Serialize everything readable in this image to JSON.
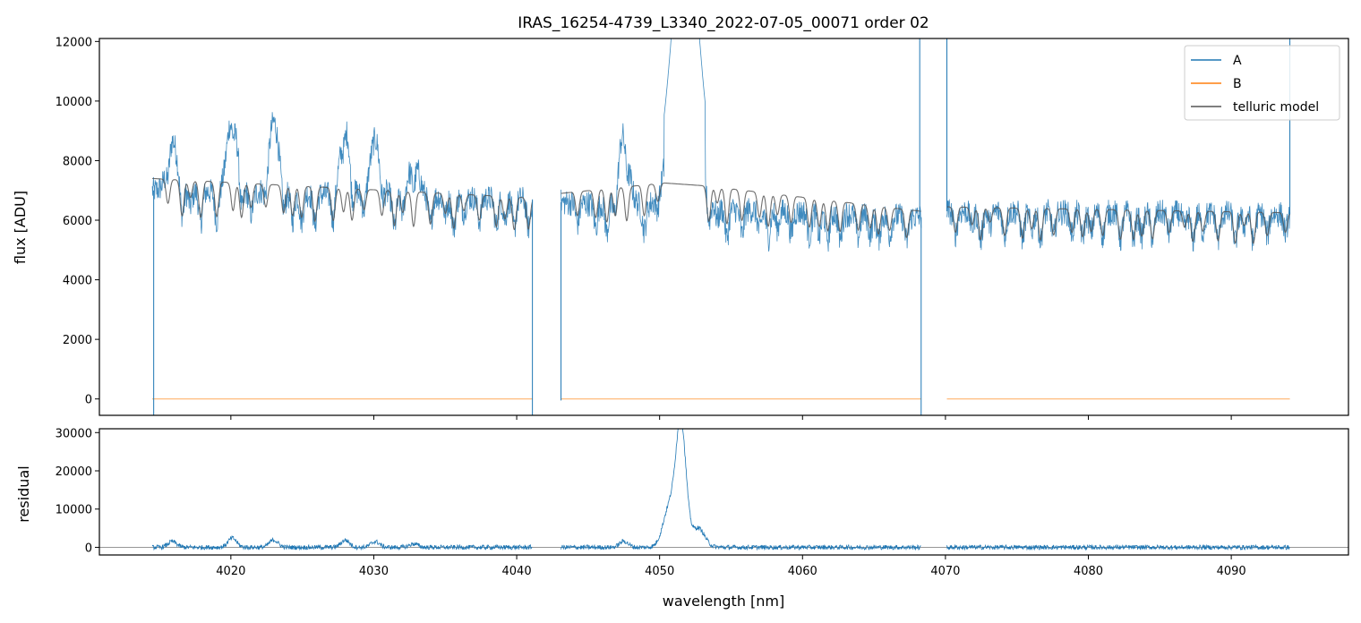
{
  "chart_data": [
    {
      "type": "line",
      "title": "IRAS_16254-4739_L3340_2022-07-05_00071  order 02",
      "ylabel": "flux [ADU]",
      "xlabel": "",
      "xlim": [
        4010.8,
        4098.2
      ],
      "ylim": [
        -550,
        12100
      ],
      "yticks": [
        0,
        2000,
        4000,
        6000,
        8000,
        10000,
        12000
      ],
      "ytick_labels": [
        "0",
        "2000",
        "4000",
        "6000",
        "8000",
        "10000",
        "12000"
      ],
      "xticks": [
        4020,
        4030,
        4040,
        4050,
        4060,
        4070,
        4080,
        4090
      ],
      "grid": false,
      "legend": {
        "position": "top-right",
        "entries": [
          "A",
          "B",
          "telluric model"
        ]
      },
      "segments": [
        {
          "x": [
            4014.5,
            4041.1
          ]
        },
        {
          "x": [
            4043.1,
            4068.3
          ]
        },
        {
          "x": [
            4070.1,
            4094.1
          ]
        }
      ],
      "series": [
        {
          "name": "A",
          "color": "#1f77b4",
          "continuum": [
            [
              4014.5,
              7000
            ],
            [
              4041.1,
              6700
            ],
            [
              4043.1,
              6600
            ],
            [
              4068.3,
              6100
            ],
            [
              4070.1,
              6300
            ],
            [
              4094.1,
              6200
            ]
          ],
          "peaks": [
            [
              4015.9,
              8700
            ],
            [
              4020.1,
              9700
            ],
            [
              4023.0,
              9300
            ],
            [
              4028.0,
              9200
            ],
            [
              4030.1,
              8700
            ],
            [
              4032.8,
              8100
            ],
            [
              4047.5,
              9000
            ],
            [
              4051.7,
              12500
            ],
            [
              4068.2,
              12200
            ],
            [
              4070.1,
              12200
            ],
            [
              4094.1,
              12200
            ]
          ],
          "drops": [
            [
              4014.6,
              -550
            ],
            [
              4041.1,
              -550
            ],
            [
              4043.1,
              -50
            ],
            [
              4068.3,
              -550
            ]
          ]
        },
        {
          "name": "B",
          "color": "#ff7f0e",
          "value": 0
        },
        {
          "name": "telluric model",
          "color": "#555555",
          "continuum": [
            [
              4014.5,
              7400
            ],
            [
              4041.1,
              6750
            ],
            [
              4043.1,
              6900
            ],
            [
              4050.3,
              7250
            ],
            [
              4053.3,
              7150
            ],
            [
              4068.3,
              6300
            ],
            [
              4070.1,
              6450
            ],
            [
              4094.1,
              6250
            ]
          ]
        }
      ]
    },
    {
      "type": "line",
      "title": "",
      "xlabel": "wavelength [nm]",
      "ylabel": "residual",
      "xlim": [
        4010.8,
        4098.2
      ],
      "ylim": [
        -2000,
        31000
      ],
      "yticks": [
        0,
        10000,
        20000,
        30000
      ],
      "ytick_labels": [
        "0",
        "10000",
        "20000",
        "30000"
      ],
      "xticks": [
        4020,
        4030,
        4040,
        4050,
        4060,
        4070,
        4080,
        4090
      ],
      "xtick_labels": [
        "4020",
        "4030",
        "4040",
        "4050",
        "4060",
        "4070",
        "4080",
        "4090"
      ],
      "grid": false,
      "zero_line": 0,
      "series": [
        {
          "name": "",
          "color": "#1f77b4",
          "peaks": [
            [
              4015.9,
              1500
            ],
            [
              4020.1,
              2400
            ],
            [
              4023.0,
              1900
            ],
            [
              4028.0,
              1900
            ],
            [
              4030.1,
              1500
            ],
            [
              4032.8,
              900
            ],
            [
              4047.5,
              1600
            ],
            [
              4050.7,
              10500
            ],
            [
              4051.5,
              31500
            ],
            [
              4052.7,
              5000
            ]
          ]
        }
      ]
    }
  ]
}
